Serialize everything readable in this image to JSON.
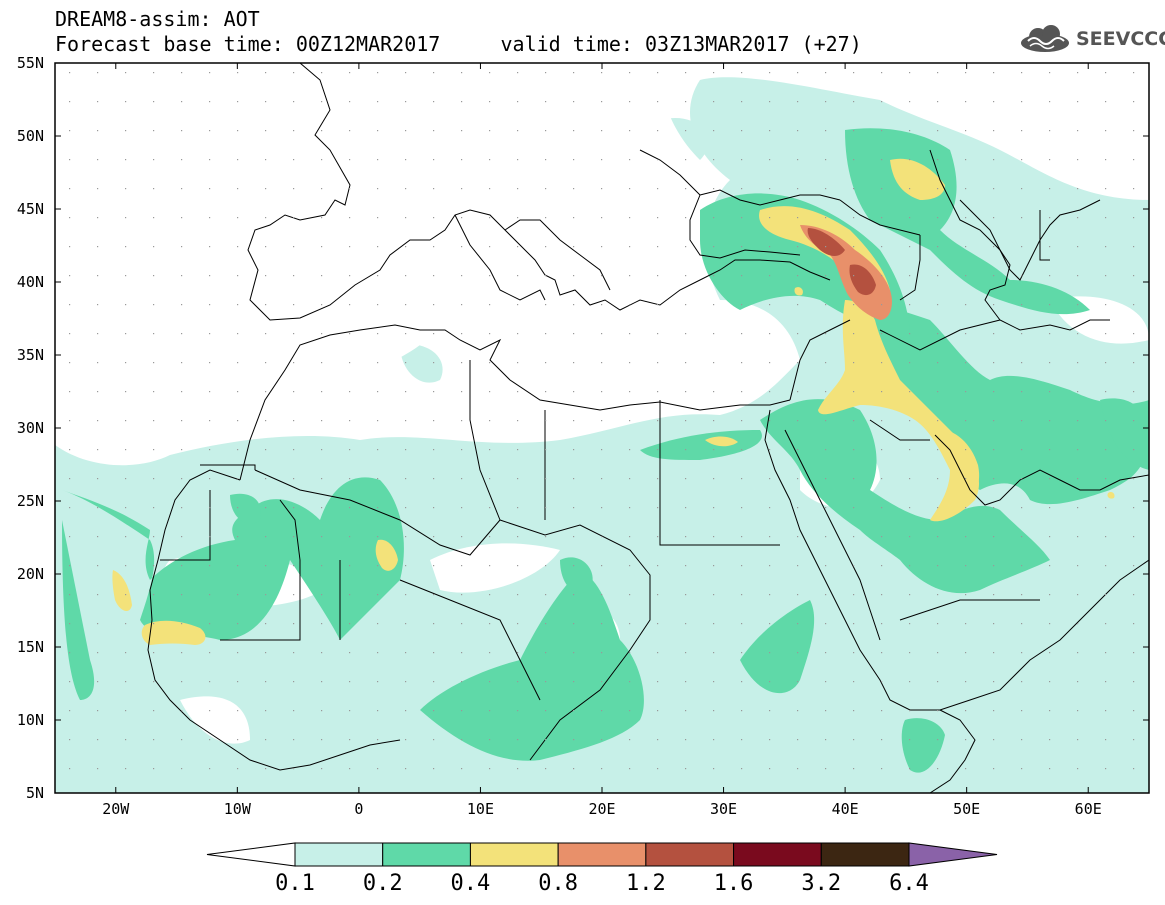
{
  "title": {
    "line1": "DREAM8-assim: AOT",
    "line2": "Forecast base time: 00Z12MAR2017     valid time: 03Z13MAR2017 (+27)"
  },
  "logo": {
    "icon": "cloud-icon",
    "text": "SEEVCCC"
  },
  "axes": {
    "lon_range": [
      -25,
      65
    ],
    "lat_range": [
      5,
      55
    ],
    "x_ticks": [
      {
        "lon": -20,
        "label": "20W"
      },
      {
        "lon": -10,
        "label": "10W"
      },
      {
        "lon": 0,
        "label": "0"
      },
      {
        "lon": 10,
        "label": "10E"
      },
      {
        "lon": 20,
        "label": "20E"
      },
      {
        "lon": 30,
        "label": "30E"
      },
      {
        "lon": 40,
        "label": "40E"
      },
      {
        "lon": 50,
        "label": "50E"
      },
      {
        "lon": 60,
        "label": "60E"
      }
    ],
    "y_ticks": [
      {
        "lat": 55,
        "label": "55N"
      },
      {
        "lat": 50,
        "label": "50N"
      },
      {
        "lat": 45,
        "label": "45N"
      },
      {
        "lat": 40,
        "label": "40N"
      },
      {
        "lat": 35,
        "label": "35N"
      },
      {
        "lat": 30,
        "label": "30N"
      },
      {
        "lat": 25,
        "label": "25N"
      },
      {
        "lat": 20,
        "label": "20N"
      },
      {
        "lat": 15,
        "label": "15N"
      },
      {
        "lat": 10,
        "label": "10N"
      },
      {
        "lat": 5,
        "label": "5N"
      }
    ]
  },
  "colorbar": {
    "colors": [
      "#c7f0e8",
      "#5fd9a8",
      "#f3e27a",
      "#e8906a",
      "#b4513f",
      "#7a0a1e",
      "#3c2612",
      "#8a62a8"
    ],
    "levels": [
      {
        "value": "0.1"
      },
      {
        "value": "0.2"
      },
      {
        "value": "0.4"
      },
      {
        "value": "0.8"
      },
      {
        "value": "1.2"
      },
      {
        "value": "1.6"
      },
      {
        "value": "3.2"
      },
      {
        "value": "6.4"
      }
    ]
  }
}
